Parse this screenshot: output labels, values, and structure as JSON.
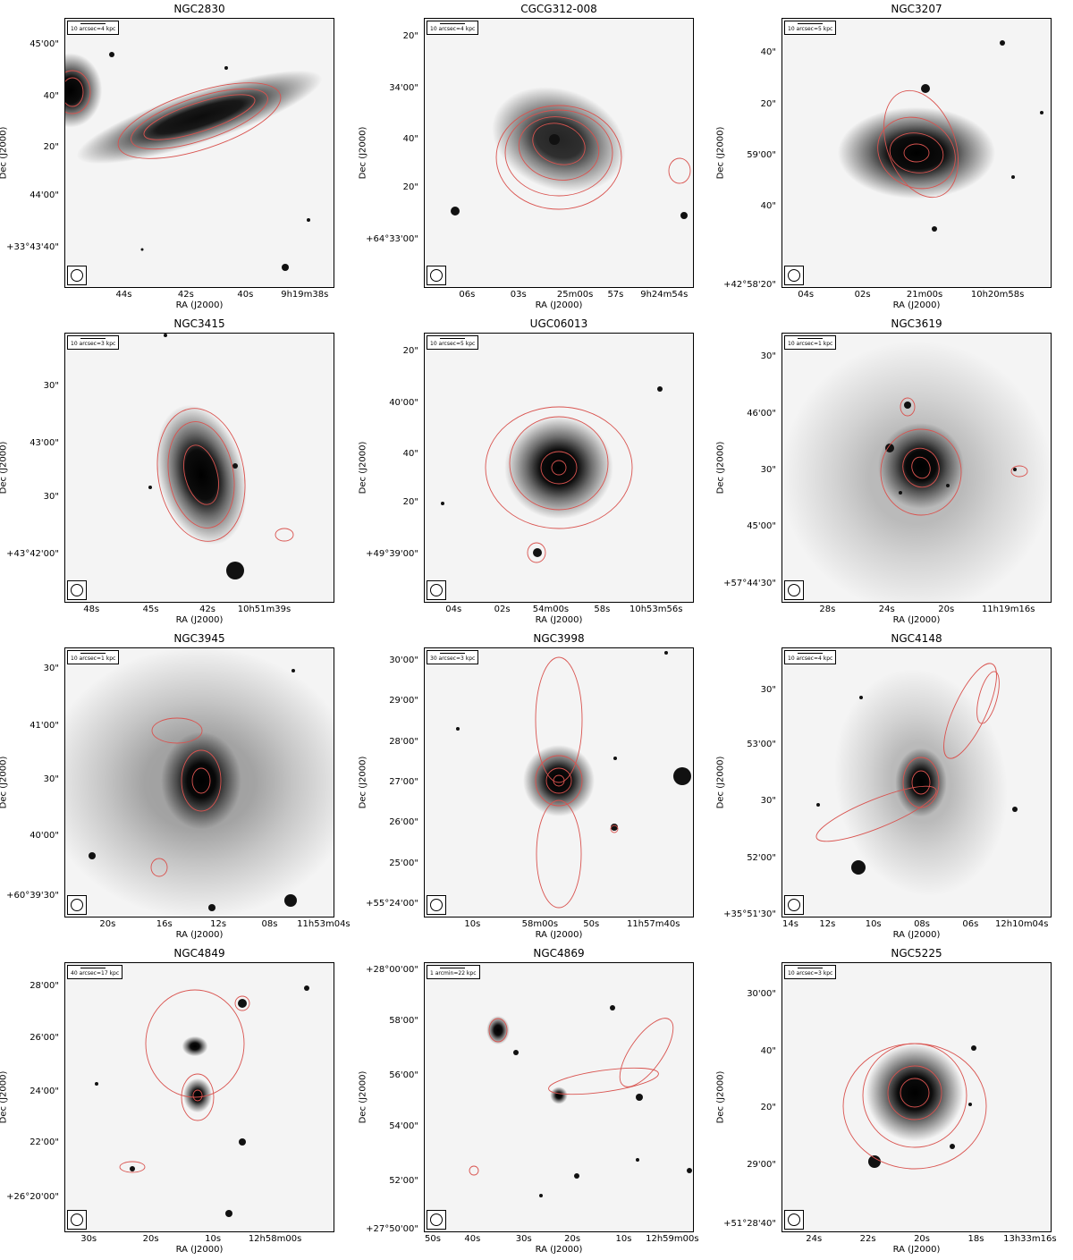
{
  "axis_labels": {
    "x": "RA (J2000)",
    "y": "Dec (J2000)"
  },
  "contour_color": "#d9534f",
  "panels": [
    {
      "id": "ngc2830",
      "title": "NGC2830",
      "scale": "10 arcsec=4 kpc",
      "yticks": [
        {
          "label": "45'00\"",
          "f": 0.1
        },
        {
          "label": "40\"",
          "f": 0.29
        },
        {
          "label": "20\"",
          "f": 0.48
        },
        {
          "label": "44'00\"",
          "f": 0.66
        },
        {
          "label": "+33°43'40\"",
          "f": 0.85
        }
      ],
      "xticks": [
        {
          "label": "44s",
          "f": 0.22
        },
        {
          "label": "42s",
          "f": 0.45
        },
        {
          "label": "40s",
          "f": 0.67
        },
        {
          "label": "9h19m38s",
          "f": 0.89
        }
      ]
    },
    {
      "id": "cgcg312",
      "title": "CGCG312-008",
      "scale": "10 arcsec=4 kpc",
      "yticks": [
        {
          "label": "20\"",
          "f": 0.07
        },
        {
          "label": "34'00\"",
          "f": 0.26
        },
        {
          "label": "40\"",
          "f": 0.45
        },
        {
          "label": "20\"",
          "f": 0.63
        },
        {
          "label": "+64°33'00\"",
          "f": 0.82
        }
      ],
      "xticks": [
        {
          "label": "06s",
          "f": 0.16
        },
        {
          "label": "03s",
          "f": 0.35
        },
        {
          "label": "25m00s",
          "f": 0.56
        },
        {
          "label": "57s",
          "f": 0.71
        },
        {
          "label": "9h24m54s",
          "f": 0.89
        }
      ]
    },
    {
      "id": "ngc3207",
      "title": "NGC3207",
      "scale": "10 arcsec=5 kpc",
      "yticks": [
        {
          "label": "40\"",
          "f": 0.13
        },
        {
          "label": "20\"",
          "f": 0.32
        },
        {
          "label": "59'00\"",
          "f": 0.51
        },
        {
          "label": "40\"",
          "f": 0.7
        },
        {
          "label": "+42°58'20\"",
          "f": 0.99
        }
      ],
      "xticks": [
        {
          "label": "04s",
          "f": 0.09
        },
        {
          "label": "02s",
          "f": 0.3
        },
        {
          "label": "21m00s",
          "f": 0.53
        },
        {
          "label": "10h20m58s",
          "f": 0.8
        }
      ]
    },
    {
      "id": "ngc3415",
      "title": "NGC3415",
      "scale": "10 arcsec=3 kpc",
      "yticks": [
        {
          "label": "30\"",
          "f": 0.2
        },
        {
          "label": "43'00\"",
          "f": 0.41
        },
        {
          "label": "30\"",
          "f": 0.61
        },
        {
          "label": "+43°42'00\"",
          "f": 0.82
        }
      ],
      "xticks": [
        {
          "label": "48s",
          "f": 0.1
        },
        {
          "label": "45s",
          "f": 0.32
        },
        {
          "label": "42s",
          "f": 0.53
        },
        {
          "label": "10h51m39s",
          "f": 0.74
        }
      ]
    },
    {
      "id": "ugc06013",
      "title": "UGC06013",
      "scale": "10 arcsec=5 kpc",
      "yticks": [
        {
          "label": "20\"",
          "f": 0.07
        },
        {
          "label": "40'00\"",
          "f": 0.26
        },
        {
          "label": "40\"",
          "f": 0.45
        },
        {
          "label": "20\"",
          "f": 0.63
        },
        {
          "label": "+49°39'00\"",
          "f": 0.82
        }
      ],
      "xticks": [
        {
          "label": "04s",
          "f": 0.11
        },
        {
          "label": "02s",
          "f": 0.29
        },
        {
          "label": "54m00s",
          "f": 0.47
        },
        {
          "label": "58s",
          "f": 0.66
        },
        {
          "label": "10h53m56s",
          "f": 0.86
        }
      ]
    },
    {
      "id": "ngc3619",
      "title": "NGC3619",
      "scale": "10 arcsec=1 kpc",
      "yticks": [
        {
          "label": "30\"",
          "f": 0.09
        },
        {
          "label": "46'00\"",
          "f": 0.3
        },
        {
          "label": "30\"",
          "f": 0.51
        },
        {
          "label": "45'00\"",
          "f": 0.72
        },
        {
          "label": "+57°44'30\"",
          "f": 0.93
        }
      ],
      "xticks": [
        {
          "label": "28s",
          "f": 0.17
        },
        {
          "label": "24s",
          "f": 0.39
        },
        {
          "label": "20s",
          "f": 0.61
        },
        {
          "label": "11h19m16s",
          "f": 0.84
        }
      ]
    },
    {
      "id": "ngc3945",
      "title": "NGC3945",
      "scale": "10 arcsec=1 kpc",
      "yticks": [
        {
          "label": "30\"",
          "f": 0.08
        },
        {
          "label": "41'00\"",
          "f": 0.29
        },
        {
          "label": "30\"",
          "f": 0.49
        },
        {
          "label": "40'00\"",
          "f": 0.7
        },
        {
          "label": "+60°39'30\"",
          "f": 0.92
        }
      ],
      "xticks": [
        {
          "label": "20s",
          "f": 0.16
        },
        {
          "label": "16s",
          "f": 0.37
        },
        {
          "label": "12s",
          "f": 0.57
        },
        {
          "label": "08s",
          "f": 0.76
        },
        {
          "label": "11h53m04s",
          "f": 0.96
        }
      ]
    },
    {
      "id": "ngc3998",
      "title": "NGC3998",
      "scale": "30 arcsec=3 kpc",
      "yticks": [
        {
          "label": "30'00\"",
          "f": 0.05
        },
        {
          "label": "29'00\"",
          "f": 0.2
        },
        {
          "label": "28'00\"",
          "f": 0.35
        },
        {
          "label": "27'00\"",
          "f": 0.5
        },
        {
          "label": "26'00\"",
          "f": 0.65
        },
        {
          "label": "25'00\"",
          "f": 0.8
        },
        {
          "label": "+55°24'00\"",
          "f": 0.95
        }
      ],
      "xticks": [
        {
          "label": "10s",
          "f": 0.18
        },
        {
          "label": "58m00s",
          "f": 0.43
        },
        {
          "label": "50s",
          "f": 0.62
        },
        {
          "label": "11h57m40s",
          "f": 0.85
        }
      ]
    },
    {
      "id": "ngc4148",
      "title": "NGC4148",
      "scale": "10 arcsec=4 kpc",
      "yticks": [
        {
          "label": "30\"",
          "f": 0.16
        },
        {
          "label": "53'00\"",
          "f": 0.36
        },
        {
          "label": "30\"",
          "f": 0.57
        },
        {
          "label": "52'00\"",
          "f": 0.78
        },
        {
          "label": "+35°51'30\"",
          "f": 0.99
        }
      ],
      "xticks": [
        {
          "label": "14s",
          "f": 0.0
        },
        {
          "label": "12s",
          "f": 0.17
        },
        {
          "label": "10s",
          "f": 0.34
        },
        {
          "label": "08s",
          "f": 0.52
        },
        {
          "label": "06s",
          "f": 0.7
        },
        {
          "label": "12h10m04s",
          "f": 0.89
        }
      ]
    },
    {
      "id": "ngc4849",
      "title": "NGC4849",
      "scale": "40 arcsec=17 kpc",
      "yticks": [
        {
          "label": "28'00\"",
          "f": 0.09
        },
        {
          "label": "26'00\"",
          "f": 0.28
        },
        {
          "label": "24'00\"",
          "f": 0.48
        },
        {
          "label": "22'00\"",
          "f": 0.67
        },
        {
          "label": "+26°20'00\"",
          "f": 0.87
        }
      ],
      "xticks": [
        {
          "label": "30s",
          "f": 0.09
        },
        {
          "label": "20s",
          "f": 0.32
        },
        {
          "label": "10s",
          "f": 0.55
        },
        {
          "label": "12h58m00s",
          "f": 0.78
        }
      ]
    },
    {
      "id": "ngc4869",
      "title": "NGC4869",
      "scale": "1 arcmin=22 kpc",
      "yticks": [
        {
          "label": "+28°00'00\"",
          "f": 0.03
        },
        {
          "label": "58'00\"",
          "f": 0.22
        },
        {
          "label": "56'00\"",
          "f": 0.42
        },
        {
          "label": "54'00\"",
          "f": 0.61
        },
        {
          "label": "52'00\"",
          "f": 0.81
        },
        {
          "label": "+27°50'00\"",
          "f": 0.99
        }
      ],
      "xticks": [
        {
          "label": "50s",
          "f": 0.0
        },
        {
          "label": "40s",
          "f": 0.18
        },
        {
          "label": "30s",
          "f": 0.37
        },
        {
          "label": "20s",
          "f": 0.55
        },
        {
          "label": "10s",
          "f": 0.74
        },
        {
          "label": "12h59m00s",
          "f": 0.92
        }
      ]
    },
    {
      "id": "ngc5225",
      "title": "NGC5225",
      "scale": "10 arcsec=3 kpc",
      "yticks": [
        {
          "label": "30'00\"",
          "f": 0.12
        },
        {
          "label": "40\"",
          "f": 0.33
        },
        {
          "label": "20\"",
          "f": 0.54
        },
        {
          "label": "29'00\"",
          "f": 0.75
        },
        {
          "label": "+51°28'40\"",
          "f": 0.97
        }
      ],
      "xticks": [
        {
          "label": "24s",
          "f": 0.12
        },
        {
          "label": "22s",
          "f": 0.32
        },
        {
          "label": "20s",
          "f": 0.52
        },
        {
          "label": "18s",
          "f": 0.72
        },
        {
          "label": "13h33m16s",
          "f": 0.92
        }
      ]
    }
  ]
}
